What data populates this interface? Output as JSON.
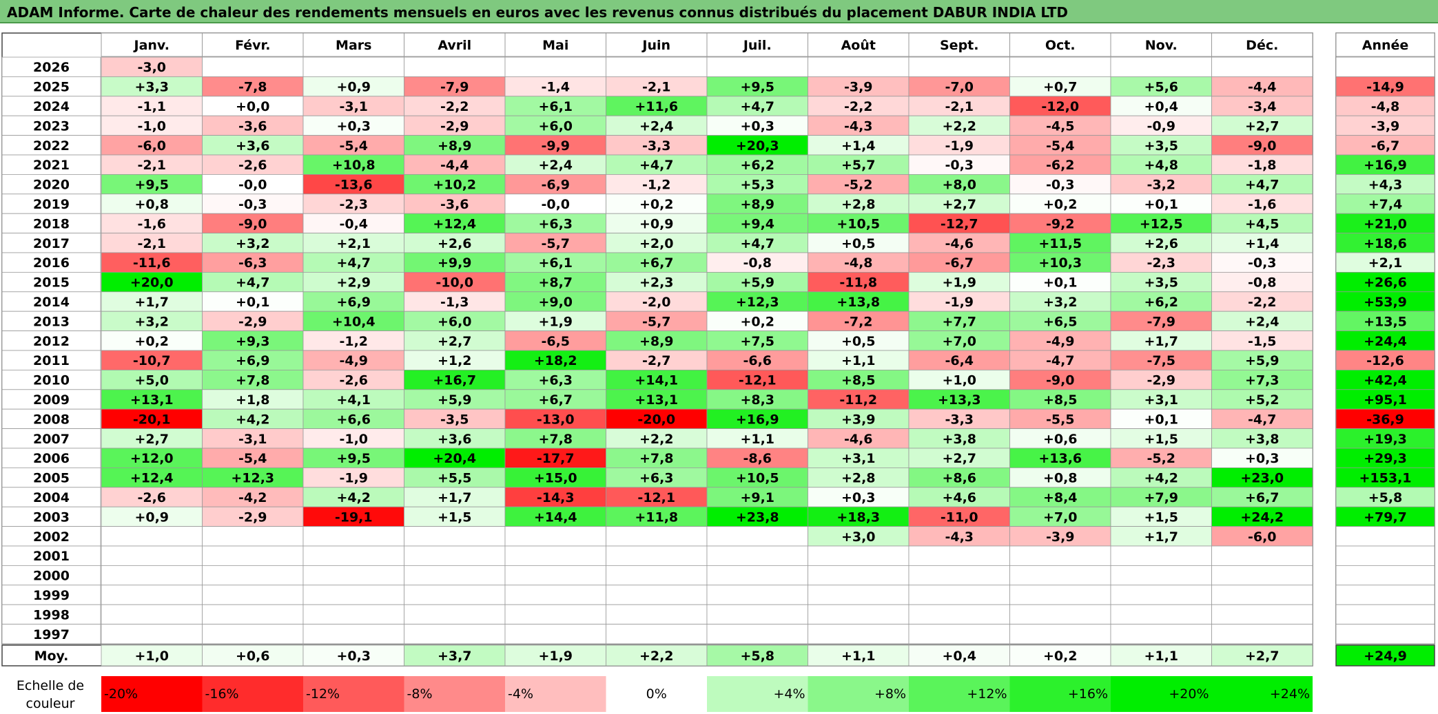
{
  "title": "ADAM Informe. Carte de chaleur des rendements mensuels en euros avec les revenus connus distribués du placement DABUR INDIA LTD",
  "chart_data": {
    "type": "heatmap",
    "title": "ADAM Informe. Carte de chaleur des rendements mensuels en euros avec les revenus connus distribués du placement DABUR INDIA LTD",
    "columns": [
      "Janv.",
      "Févr.",
      "Mars",
      "Avril",
      "Mai",
      "Juin",
      "Juil.",
      "Août",
      "Sept.",
      "Oct.",
      "Nov.",
      "Déc."
    ],
    "year_column_label": "Année",
    "average_row_label": "Moy.",
    "scale_label": "Echelle de couleur",
    "rows": [
      {
        "year": "2026",
        "values": [
          "-3,0",
          null,
          null,
          null,
          null,
          null,
          null,
          null,
          null,
          null,
          null,
          null
        ],
        "annual": null
      },
      {
        "year": "2025",
        "values": [
          "+3,3",
          "-7,8",
          "+0,9",
          "-7,9",
          "-1,4",
          "-2,1",
          "+9,5",
          "-3,9",
          "-7,0",
          "+0,7",
          "+5,6",
          "-4,4"
        ],
        "annual": "-14,9"
      },
      {
        "year": "2024",
        "values": [
          "-1,1",
          "+0,0",
          "-3,1",
          "-2,2",
          "+6,1",
          "+11,6",
          "+4,7",
          "-2,2",
          "-2,1",
          "-12,0",
          "+0,4",
          "-3,4"
        ],
        "annual": "-4,8"
      },
      {
        "year": "2023",
        "values": [
          "-1,0",
          "-3,6",
          "+0,3",
          "-2,9",
          "+6,0",
          "+2,4",
          "+0,3",
          "-4,3",
          "+2,2",
          "-4,5",
          "-0,9",
          "+2,7"
        ],
        "annual": "-3,9"
      },
      {
        "year": "2022",
        "values": [
          "-6,0",
          "+3,6",
          "-5,4",
          "+8,9",
          "-9,9",
          "-3,3",
          "+20,3",
          "+1,4",
          "-1,9",
          "-5,4",
          "+3,5",
          "-9,0"
        ],
        "annual": "-6,7"
      },
      {
        "year": "2021",
        "values": [
          "-2,1",
          "-2,6",
          "+10,8",
          "-4,4",
          "+2,4",
          "+4,7",
          "+6,2",
          "+5,7",
          "-0,3",
          "-6,2",
          "+4,8",
          "-1,8"
        ],
        "annual": "+16,9"
      },
      {
        "year": "2020",
        "values": [
          "+9,5",
          "-0,0",
          "-13,6",
          "+10,2",
          "-6,9",
          "-1,2",
          "+5,3",
          "-5,2",
          "+8,0",
          "-0,3",
          "-3,2",
          "+4,7"
        ],
        "annual": "+4,3"
      },
      {
        "year": "2019",
        "values": [
          "+0,8",
          "-0,3",
          "-2,3",
          "-3,6",
          "-0,0",
          "+0,2",
          "+8,9",
          "+2,8",
          "+2,7",
          "+0,2",
          "+0,1",
          "-1,6"
        ],
        "annual": "+7,4"
      },
      {
        "year": "2018",
        "values": [
          "-1,6",
          "-9,0",
          "-0,4",
          "+12,4",
          "+6,3",
          "+0,9",
          "+9,4",
          "+10,5",
          "-12,7",
          "-9,2",
          "+12,5",
          "+4,5"
        ],
        "annual": "+21,0"
      },
      {
        "year": "2017",
        "values": [
          "-2,1",
          "+3,2",
          "+2,1",
          "+2,6",
          "-5,7",
          "+2,0",
          "+4,7",
          "+0,5",
          "-4,6",
          "+11,5",
          "+2,6",
          "+1,4"
        ],
        "annual": "+18,6"
      },
      {
        "year": "2016",
        "values": [
          "-11,6",
          "-6,3",
          "+4,7",
          "+9,9",
          "+6,1",
          "+6,7",
          "-0,8",
          "-4,8",
          "-6,7",
          "+10,3",
          "-2,3",
          "-0,3"
        ],
        "annual": "+2,1"
      },
      {
        "year": "2015",
        "values": [
          "+20,0",
          "+4,7",
          "+2,9",
          "-10,0",
          "+8,7",
          "+2,3",
          "+5,9",
          "-11,8",
          "+1,9",
          "+0,1",
          "+3,5",
          "-0,8"
        ],
        "annual": "+26,6"
      },
      {
        "year": "2014",
        "values": [
          "+1,7",
          "+0,1",
          "+6,9",
          "-1,3",
          "+9,0",
          "-2,0",
          "+12,3",
          "+13,8",
          "-1,9",
          "+3,2",
          "+6,2",
          "-2,2"
        ],
        "annual": "+53,9"
      },
      {
        "year": "2013",
        "values": [
          "+3,2",
          "-2,9",
          "+10,4",
          "+6,0",
          "+1,9",
          "-5,7",
          "+0,2",
          "-7,2",
          "+7,7",
          "+6,5",
          "-7,9",
          "+2,4"
        ],
        "annual": "+13,5"
      },
      {
        "year": "2012",
        "values": [
          "+0,2",
          "+9,3",
          "-1,2",
          "+2,7",
          "-6,5",
          "+8,9",
          "+7,5",
          "+0,5",
          "+7,0",
          "-4,9",
          "+1,7",
          "-1,5"
        ],
        "annual": "+24,4"
      },
      {
        "year": "2011",
        "values": [
          "-10,7",
          "+6,9",
          "-4,9",
          "+1,2",
          "+18,2",
          "-2,7",
          "-6,6",
          "+1,1",
          "-6,4",
          "-4,7",
          "-7,5",
          "+5,9"
        ],
        "annual": "-12,6"
      },
      {
        "year": "2010",
        "values": [
          "+5,0",
          "+7,8",
          "-2,6",
          "+16,7",
          "+6,3",
          "+14,1",
          "-12,1",
          "+8,5",
          "+1,0",
          "-9,0",
          "-2,9",
          "+7,3"
        ],
        "annual": "+42,4"
      },
      {
        "year": "2009",
        "values": [
          "+13,1",
          "+1,8",
          "+4,1",
          "+5,9",
          "+6,7",
          "+13,1",
          "+8,3",
          "-11,2",
          "+13,3",
          "+8,5",
          "+3,1",
          "+5,2"
        ],
        "annual": "+95,1"
      },
      {
        "year": "2008",
        "values": [
          "-20,1",
          "+4,2",
          "+6,6",
          "-3,5",
          "-13,0",
          "-20,0",
          "+16,9",
          "+3,9",
          "-3,3",
          "-5,5",
          "+0,1",
          "-4,7"
        ],
        "annual": "-36,9"
      },
      {
        "year": "2007",
        "values": [
          "+2,7",
          "-3,1",
          "-1,0",
          "+3,6",
          "+7,8",
          "+2,2",
          "+1,1",
          "-4,6",
          "+3,8",
          "+0,6",
          "+1,5",
          "+3,8"
        ],
        "annual": "+19,3"
      },
      {
        "year": "2006",
        "values": [
          "+12,0",
          "-5,4",
          "+9,5",
          "+20,4",
          "-17,7",
          "+7,8",
          "-8,6",
          "+3,1",
          "+2,7",
          "+13,6",
          "-5,2",
          "+0,3"
        ],
        "annual": "+29,3"
      },
      {
        "year": "2005",
        "values": [
          "+12,4",
          "+12,3",
          "-1,9",
          "+5,5",
          "+15,0",
          "+6,3",
          "+10,5",
          "+2,8",
          "+8,6",
          "+0,8",
          "+4,2",
          "+23,0"
        ],
        "annual": "+153,1"
      },
      {
        "year": "2004",
        "values": [
          "-2,6",
          "-4,2",
          "+4,2",
          "+1,7",
          "-14,3",
          "-12,1",
          "+9,1",
          "+0,3",
          "+4,6",
          "+8,4",
          "+7,9",
          "+6,7"
        ],
        "annual": "+5,8"
      },
      {
        "year": "2003",
        "values": [
          "+0,9",
          "-2,9",
          "-19,1",
          "+1,5",
          "+14,4",
          "+11,8",
          "+23,8",
          "+18,3",
          "-11,0",
          "+7,0",
          "+1,5",
          "+24,2"
        ],
        "annual": "+79,7"
      },
      {
        "year": "2002",
        "values": [
          null,
          null,
          null,
          null,
          null,
          null,
          null,
          "+3,0",
          "-4,3",
          "-3,9",
          "+1,7",
          "-6,0"
        ],
        "annual": null
      },
      {
        "year": "2001",
        "values": [
          null,
          null,
          null,
          null,
          null,
          null,
          null,
          null,
          null,
          null,
          null,
          null
        ],
        "annual": null
      },
      {
        "year": "2000",
        "values": [
          null,
          null,
          null,
          null,
          null,
          null,
          null,
          null,
          null,
          null,
          null,
          null
        ],
        "annual": null
      },
      {
        "year": "1999",
        "values": [
          null,
          null,
          null,
          null,
          null,
          null,
          null,
          null,
          null,
          null,
          null,
          null
        ],
        "annual": null
      },
      {
        "year": "1998",
        "values": [
          null,
          null,
          null,
          null,
          null,
          null,
          null,
          null,
          null,
          null,
          null,
          null
        ],
        "annual": null
      },
      {
        "year": "1997",
        "values": [
          null,
          null,
          null,
          null,
          null,
          null,
          null,
          null,
          null,
          null,
          null,
          null
        ],
        "annual": null
      }
    ],
    "averages": [
      "+1,0",
      "+0,6",
      "+0,3",
      "+3,7",
      "+1,9",
      "+2,2",
      "+5,8",
      "+1,1",
      "+0,4",
      "+0,2",
      "+1,1",
      "+2,7"
    ],
    "average_annual": "+24,9",
    "scale": [
      "-20%",
      "-16%",
      "-12%",
      "-8%",
      "-4%",
      "0%",
      "+4%",
      "+8%",
      "+12%",
      "+16%",
      "+20%",
      "+24%"
    ],
    "colors": {
      "neg_max": "#ff0000",
      "pos_max": "#00ee00",
      "neutral": "#ffffff",
      "title_bg": "#7fc97f"
    }
  }
}
